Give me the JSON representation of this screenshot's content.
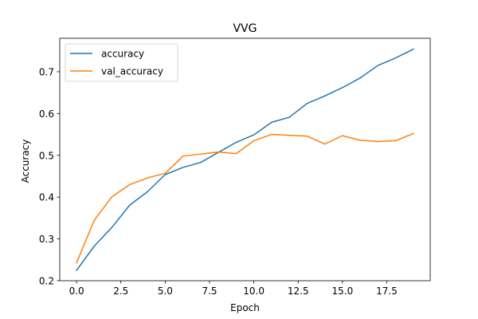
{
  "chart_data": {
    "type": "line",
    "title": "VVG",
    "xlabel": "Epoch",
    "ylabel": "Accuracy",
    "xlim": [
      -0.95,
      19.95
    ],
    "ylim": [
      0.2,
      0.78
    ],
    "xticks": [
      0.0,
      2.5,
      5.0,
      7.5,
      10.0,
      12.5,
      15.0,
      17.5
    ],
    "xtick_labels": [
      "0.0",
      "2.5",
      "5.0",
      "7.5",
      "10.0",
      "12.5",
      "15.0",
      "17.5"
    ],
    "yticks": [
      0.2,
      0.3,
      0.4,
      0.5,
      0.6,
      0.7
    ],
    "ytick_labels": [
      "0.2",
      "0.3",
      "0.4",
      "0.5",
      "0.6",
      "0.7"
    ],
    "grid": false,
    "legend_position": "top-left",
    "x": [
      0,
      1,
      2,
      3,
      4,
      5,
      6,
      7,
      8,
      9,
      10,
      11,
      12,
      13,
      14,
      15,
      16,
      17,
      18,
      19
    ],
    "series": [
      {
        "name": "accuracy",
        "color": "#1f77b4",
        "values": [
          0.225,
          0.283,
          0.328,
          0.381,
          0.413,
          0.454,
          0.471,
          0.483,
          0.507,
          0.531,
          0.549,
          0.579,
          0.591,
          0.624,
          0.642,
          0.662,
          0.685,
          0.715,
          0.733,
          0.754
        ]
      },
      {
        "name": "val_accuracy",
        "color": "#ff7f0e",
        "values": [
          0.243,
          0.345,
          0.401,
          0.43,
          0.446,
          0.457,
          0.498,
          0.503,
          0.508,
          0.504,
          0.535,
          0.55,
          0.548,
          0.546,
          0.527,
          0.547,
          0.536,
          0.533,
          0.535,
          0.552
        ]
      }
    ]
  }
}
